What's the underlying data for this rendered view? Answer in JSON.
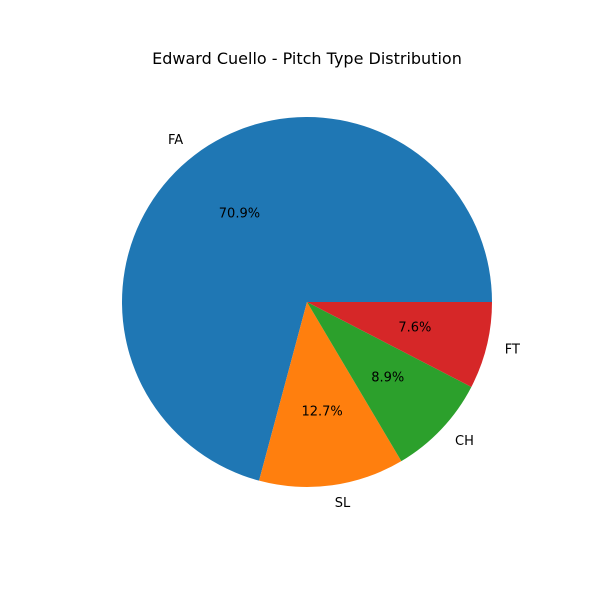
{
  "chart_data": {
    "type": "pie",
    "title": "Edward Cuello - Pitch Type Distribution",
    "slices": [
      {
        "label": "FA",
        "value": 70.9,
        "pct_label": "70.9%",
        "color": "#1f77b4"
      },
      {
        "label": "SL",
        "value": 12.7,
        "pct_label": "12.7%",
        "color": "#ff7f0e"
      },
      {
        "label": "CH",
        "value": 8.9,
        "pct_label": "8.9%",
        "color": "#2ca02c"
      },
      {
        "label": "FT",
        "value": 7.6,
        "pct_label": "7.6%",
        "color": "#d62728"
      }
    ],
    "start_angle_deg": 0,
    "direction": "counterclockwise"
  }
}
